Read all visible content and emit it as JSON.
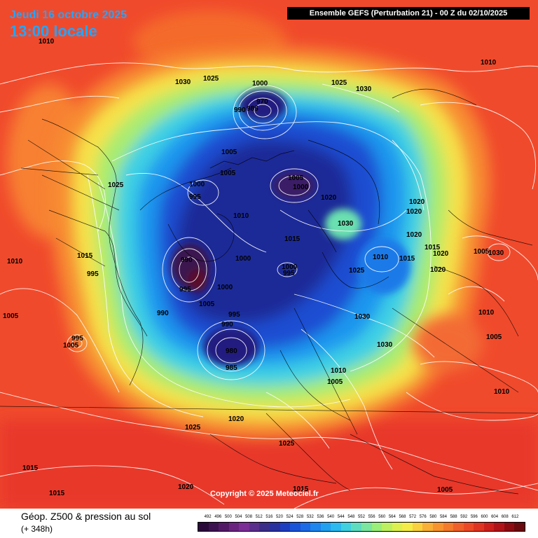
{
  "header": {
    "date": "Jeudi 16 octobre 2025",
    "time": "13:00 locale",
    "title": "Ensemble GEFS  (Perturbation 21)  -  00 Z du 02/10/2025"
  },
  "copyright": "Copyright © 2025 Meteociel.fr",
  "footer": {
    "title": "Géop. Z500 & pression au sol",
    "subtitle": "(+ 348h)"
  },
  "colors": {
    "background_red": "#f0442a",
    "low_center": "#3a1850",
    "contour": "#ffffff",
    "coast": "#000000"
  },
  "scale": {
    "labels": [
      "492",
      "496",
      "500",
      "504",
      "508",
      "512",
      "516",
      "520",
      "524",
      "528",
      "532",
      "536",
      "540",
      "544",
      "548",
      "552",
      "556",
      "560",
      "564",
      "568",
      "572",
      "576",
      "580",
      "584",
      "588",
      "592",
      "596",
      "600",
      "604",
      "608",
      "612"
    ],
    "colors": [
      "#2a0a3a",
      "#3c1250",
      "#521a66",
      "#6a2480",
      "#7a2e96",
      "#5a2e8c",
      "#3a2e8a",
      "#2830a0",
      "#1e3ec2",
      "#1a54d8",
      "#1c6ae6",
      "#1e86ee",
      "#22a0f0",
      "#2cbaf0",
      "#40d0e0",
      "#5edcc0",
      "#7ae6a0",
      "#9aee7a",
      "#bcf060",
      "#dcf050",
      "#f4ec48",
      "#f8d040",
      "#f8b038",
      "#f89430",
      "#f47a2c",
      "#f0602a",
      "#ec4a26",
      "#e03422",
      "#cc201c",
      "#b01418",
      "#8c0c12",
      "#6a0a0e"
    ]
  },
  "pressure_labels": [
    {
      "text": "1010"
    },
    {
      "text": "1030"
    },
    {
      "text": "1025"
    },
    {
      "text": "1000"
    },
    {
      "text": "970"
    },
    {
      "text": "990"
    },
    {
      "text": "985"
    },
    {
      "text": "1025"
    },
    {
      "text": "1030"
    },
    {
      "text": "1010"
    },
    {
      "text": "1005"
    },
    {
      "text": "1005"
    },
    {
      "text": "1025"
    },
    {
      "text": "1000"
    },
    {
      "text": "995"
    },
    {
      "text": "1005"
    },
    {
      "text": "1000"
    },
    {
      "text": "1010"
    },
    {
      "text": "1020"
    },
    {
      "text": "1015"
    },
    {
      "text": "1030"
    },
    {
      "text": "1020"
    },
    {
      "text": "1020"
    },
    {
      "text": "1020"
    },
    {
      "text": "1015"
    },
    {
      "text": "1020"
    },
    {
      "text": "1020"
    },
    {
      "text": "1005"
    },
    {
      "text": "1030"
    },
    {
      "text": "1010"
    },
    {
      "text": "1010"
    },
    {
      "text": "1015"
    },
    {
      "text": "1015"
    },
    {
      "text": "990"
    },
    {
      "text": "1000"
    },
    {
      "text": "1000"
    },
    {
      "text": "995"
    },
    {
      "text": "995"
    },
    {
      "text": "1025"
    },
    {
      "text": "995"
    },
    {
      "text": "1000"
    },
    {
      "text": "1005"
    },
    {
      "text": "990"
    },
    {
      "text": "995"
    },
    {
      "text": "990"
    },
    {
      "text": "980"
    },
    {
      "text": "985"
    },
    {
      "text": "1030"
    },
    {
      "text": "1030"
    },
    {
      "text": "1010"
    },
    {
      "text": "1005"
    },
    {
      "text": "1005"
    },
    {
      "text": "995"
    },
    {
      "text": "1005"
    },
    {
      "text": "1005"
    },
    {
      "text": "1010"
    },
    {
      "text": "1010"
    },
    {
      "text": "1025"
    },
    {
      "text": "1020"
    },
    {
      "text": "1025"
    },
    {
      "text": "1015"
    },
    {
      "text": "1015"
    },
    {
      "text": "1020"
    },
    {
      "text": "1015"
    },
    {
      "text": "1005"
    }
  ]
}
